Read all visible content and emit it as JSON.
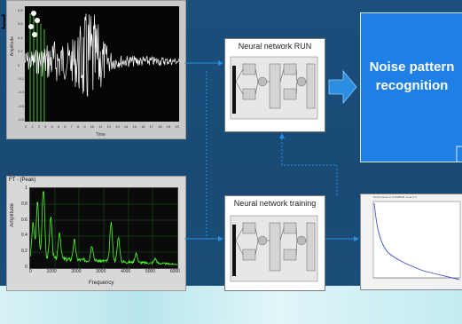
{
  "colors": {
    "background": "#184a74",
    "arrow": "#2a8fe0",
    "noise_box": "#1e7fe6",
    "spectrum_line": "#4cff2a",
    "wave_line": "#ffffff",
    "convergence_line": "#3a4ed8"
  },
  "waveform_plot": {
    "x_label": "Time",
    "y_label": "Amplitude",
    "x_ticks": [
      "0",
      "1",
      "2",
      "3",
      "4",
      "5",
      "6",
      "7",
      "8",
      "9",
      "10",
      "11",
      "12",
      "13",
      "14",
      "15",
      "16",
      "17",
      "18",
      "19",
      "20"
    ],
    "y_ticks": [
      "0.8",
      "0.6",
      "0.4",
      "0.2",
      "0",
      "-0.2",
      "-0.4",
      "-0.6",
      "-0.8"
    ]
  },
  "spectrum_plot": {
    "title": "FT - (Peak)",
    "x_label": "Frequency",
    "y_label": "Amplitude",
    "x_ticks": [
      "0",
      "1000",
      "2000",
      "3000",
      "4000",
      "5000",
      "6000"
    ],
    "y_ticks": [
      "1",
      "0.8",
      "0.6",
      "0.4",
      "0.2",
      "0"
    ]
  },
  "nn_run": {
    "title": "Neural network RUN"
  },
  "nn_training": {
    "title": "Neural network training"
  },
  "noise_pattern": {
    "line1": "Noise pattern",
    "line2": "recognition"
  },
  "convergence_plot": {
    "title": "Performance is 0.0028945, Goal is 0"
  },
  "edge_char": "]",
  "icons": [
    "block-arrow-right-icon",
    "dotted-arrow-up-icon",
    "neuron-block-icon"
  ]
}
